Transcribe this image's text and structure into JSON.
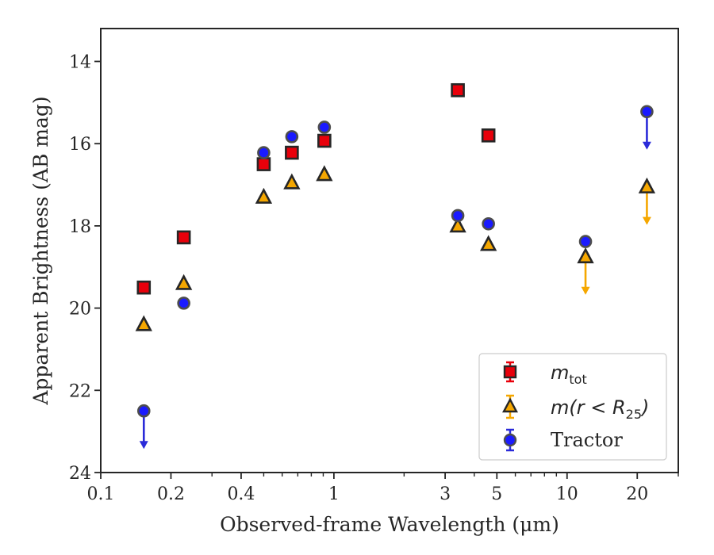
{
  "chart_data": {
    "type": "scatter",
    "xlabel": "Observed-frame Wavelength (μm)",
    "ylabel": "Apparent Brightness (AB mag)",
    "xscale": "log",
    "xlim": [
      0.1,
      30
    ],
    "ylim": [
      24,
      13.2
    ],
    "y_inverted": true,
    "x_ticks": [
      {
        "value": 0.1,
        "label": "0.1"
      },
      {
        "value": 0.2,
        "label": "0.2"
      },
      {
        "value": 0.4,
        "label": "0.4"
      },
      {
        "value": 1,
        "label": "1"
      },
      {
        "value": 3,
        "label": "3"
      },
      {
        "value": 5,
        "label": "5"
      },
      {
        "value": 10,
        "label": "10"
      },
      {
        "value": 20,
        "label": "20"
      }
    ],
    "y_ticks": [
      {
        "value": 14,
        "label": "14"
      },
      {
        "value": 16,
        "label": "16"
      },
      {
        "value": 18,
        "label": "18"
      },
      {
        "value": 20,
        "label": "20"
      },
      {
        "value": 22,
        "label": "22"
      },
      {
        "value": 24,
        "label": "24"
      }
    ],
    "grid": false,
    "legend_position": "lower-right",
    "series": [
      {
        "name": "m_tot",
        "marker": "square",
        "color": "#e8000b",
        "error_color": "#e8000b",
        "points": [
          {
            "x": 0.153,
            "y": 19.5
          },
          {
            "x": 0.227,
            "y": 18.28
          },
          {
            "x": 0.5,
            "y": 16.5
          },
          {
            "x": 0.66,
            "y": 16.22
          },
          {
            "x": 0.91,
            "y": 15.93
          },
          {
            "x": 3.4,
            "y": 14.7
          },
          {
            "x": 4.6,
            "y": 15.8
          }
        ]
      },
      {
        "name": "m(r < R25)",
        "marker": "triangle",
        "color": "#f5a700",
        "error_color": "#f5a700",
        "points": [
          {
            "x": 0.153,
            "y": 20.4,
            "upper_limit": false
          },
          {
            "x": 0.227,
            "y": 19.4,
            "upper_limit": false
          },
          {
            "x": 0.5,
            "y": 17.3,
            "upper_limit": false
          },
          {
            "x": 0.66,
            "y": 16.95,
            "upper_limit": false
          },
          {
            "x": 0.91,
            "y": 16.75,
            "upper_limit": false
          },
          {
            "x": 3.4,
            "y": 18.0,
            "upper_limit": false
          },
          {
            "x": 4.6,
            "y": 18.45,
            "upper_limit": false
          },
          {
            "x": 12.0,
            "y": 18.75,
            "upper_limit": true
          },
          {
            "x": 22.0,
            "y": 17.05,
            "upper_limit": true
          }
        ]
      },
      {
        "name": "Tractor",
        "marker": "circle",
        "color": "#1a1aff",
        "error_color": "#2b2bd9",
        "points": [
          {
            "x": 0.153,
            "y": 22.5,
            "upper_limit": true
          },
          {
            "x": 0.227,
            "y": 19.88,
            "upper_limit": false
          },
          {
            "x": 0.5,
            "y": 16.22,
            "upper_limit": false
          },
          {
            "x": 0.66,
            "y": 15.83,
            "upper_limit": false
          },
          {
            "x": 0.91,
            "y": 15.6,
            "upper_limit": false
          },
          {
            "x": 3.4,
            "y": 17.75,
            "upper_limit": false
          },
          {
            "x": 4.6,
            "y": 17.95,
            "upper_limit": false
          },
          {
            "x": 12.0,
            "y": 18.38,
            "upper_limit": false
          },
          {
            "x": 22.0,
            "y": 15.22,
            "upper_limit": true
          }
        ]
      }
    ]
  },
  "legend": {
    "entries": [
      {
        "label_main": "m",
        "label_sub": "tot"
      },
      {
        "label_main": "m(r < R",
        "label_sub": "25",
        "label_close": ")"
      },
      {
        "label_main": "Tractor"
      }
    ]
  }
}
